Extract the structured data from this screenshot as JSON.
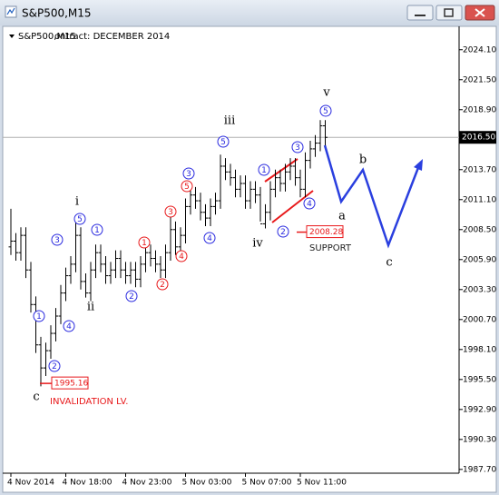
{
  "window": {
    "title": "S&P500,M15"
  },
  "chart_data": {
    "type": "ohlc",
    "title": "S&P500,M15",
    "subtitle": "ontract: DECEMBER 2014",
    "color": "#000000",
    "categories": [
      "4 Nov 2014",
      null,
      null,
      null,
      null,
      null,
      null,
      null,
      null,
      null,
      null,
      "4 Nov 18:00",
      null,
      null,
      null,
      null,
      null,
      null,
      null,
      null,
      null,
      null,
      null,
      "4 Nov 23:00",
      null,
      null,
      null,
      null,
      null,
      null,
      null,
      null,
      null,
      null,
      null,
      "5 Nov 03:00",
      null,
      null,
      null,
      null,
      null,
      null,
      null,
      null,
      null,
      null,
      null,
      "5 Nov 07:00",
      null,
      null,
      null,
      null,
      null,
      null,
      null,
      null,
      null,
      null,
      "5 Nov 11:00",
      null,
      null,
      null,
      null,
      null
    ],
    "open": [
      2007.0,
      2007.5,
      2006.5,
      2008.0,
      2005.0,
      2002.0,
      1998.5,
      1996.5,
      1998.0,
      1999.5,
      2001.0,
      2003.0,
      2004.5,
      2005.5,
      2008.0,
      2004.0,
      2003.0,
      2005.0,
      2006.5,
      2005.5,
      2004.5,
      2005.0,
      2006.0,
      2005.0,
      2004.5,
      2005.0,
      2004.2,
      2005.5,
      2006.5,
      2006.0,
      2005.5,
      2005.0,
      2006.5,
      2008.5,
      2007.0,
      2008.0,
      2010.5,
      2011.5,
      2011.0,
      2010.0,
      2009.5,
      2010.5,
      2011.0,
      2014.0,
      2013.5,
      2013.0,
      2012.0,
      2012.5,
      2011.0,
      2012.0,
      2011.5,
      2009.0,
      2010.0,
      2012.0,
      2013.0,
      2012.5,
      2013.5,
      2014.0,
      2013.0,
      2012.0,
      2014.5,
      2015.5,
      2016.0,
      2017.5
    ],
    "high": [
      2010.3,
      2008.2,
      2008.7,
      2008.7,
      2005.7,
      2002.7,
      1999.2,
      1998.7,
      2000.2,
      2001.7,
      2003.7,
      2005.2,
      2006.2,
      2009.6,
      2008.7,
      2004.7,
      2005.7,
      2007.2,
      2007.2,
      2006.2,
      2005.7,
      2006.7,
      2006.7,
      2005.7,
      2005.7,
      2005.7,
      2006.2,
      2007.2,
      2007.2,
      2006.7,
      2006.2,
      2007.2,
      2009.8,
      2009.2,
      2008.7,
      2011.2,
      2012.2,
      2012.2,
      2011.7,
      2010.7,
      2011.2,
      2011.7,
      2015.0,
      2014.7,
      2014.2,
      2013.7,
      2013.2,
      2013.2,
      2012.7,
      2012.7,
      2012.2,
      2010.7,
      2012.7,
      2013.7,
      2013.7,
      2014.2,
      2014.7,
      2014.7,
      2013.7,
      2015.2,
      2016.2,
      2016.7,
      2018.0,
      2018.0
    ],
    "low": [
      2006.3,
      2005.8,
      2005.8,
      2004.3,
      2001.3,
      1997.8,
      1994.9,
      1995.8,
      1997.3,
      1998.8,
      2000.3,
      2002.3,
      2003.8,
      2004.8,
      2003.3,
      2002.6,
      2002.3,
      2004.3,
      2004.8,
      2003.8,
      2003.8,
      2004.3,
      2004.3,
      2003.8,
      2003.8,
      2003.5,
      2003.5,
      2004.8,
      2005.3,
      2004.8,
      2004.3,
      2004.3,
      2005.8,
      2006.3,
      2006.3,
      2007.3,
      2009.8,
      2010.3,
      2009.3,
      2008.8,
      2008.8,
      2009.8,
      2010.3,
      2012.8,
      2012.3,
      2011.3,
      2011.3,
      2010.3,
      2010.3,
      2010.8,
      2009.2,
      2008.6,
      2009.3,
      2011.3,
      2011.8,
      2011.8,
      2012.8,
      2012.3,
      2011.3,
      2011.3,
      2013.8,
      2014.8,
      2015.3,
      2015.8
    ],
    "close": [
      2007.5,
      2006.5,
      2008.0,
      2005.0,
      2002.0,
      1998.5,
      1996.5,
      1998.0,
      1999.5,
      2001.0,
      2003.0,
      2004.5,
      2005.5,
      2008.0,
      2004.0,
      2003.0,
      2005.0,
      2006.5,
      2005.5,
      2004.5,
      2005.0,
      2006.0,
      2005.0,
      2004.5,
      2005.0,
      2004.2,
      2005.5,
      2006.5,
      2006.0,
      2005.5,
      2005.0,
      2006.5,
      2008.5,
      2007.0,
      2008.0,
      2010.5,
      2011.5,
      2011.0,
      2010.0,
      2009.5,
      2010.5,
      2011.0,
      2014.0,
      2013.5,
      2013.0,
      2012.0,
      2012.5,
      2011.0,
      2012.0,
      2011.5,
      2009.0,
      2010.0,
      2012.0,
      2013.0,
      2012.5,
      2013.5,
      2014.0,
      2013.0,
      2012.0,
      2014.5,
      2015.5,
      2016.0,
      2017.5,
      2016.5
    ],
    "ylim": [
      1987.45,
      2026.05
    ],
    "yticks": [
      {
        "value": 2024.1,
        "label": "2024.10"
      },
      {
        "value": 2021.5,
        "label": "2021.50"
      },
      {
        "value": 2018.9,
        "label": "2018.90"
      },
      {
        "value": 2016.3,
        "label": "2016.30"
      },
      {
        "value": 2013.7,
        "label": "2013.70"
      },
      {
        "value": 2011.1,
        "label": "2011.10"
      },
      {
        "value": 2008.5,
        "label": "2008.50"
      },
      {
        "value": 2005.9,
        "label": "2005.90"
      },
      {
        "value": 2003.3,
        "label": "2003.30"
      },
      {
        "value": 2000.7,
        "label": "2000.70"
      },
      {
        "value": 1998.1,
        "label": "1998.10"
      },
      {
        "value": 1995.5,
        "label": "1995.50"
      },
      {
        "value": 1992.9,
        "label": "1992.90"
      },
      {
        "value": 1990.3,
        "label": "1990.30"
      },
      {
        "value": 1987.7,
        "label": "1987.70"
      }
    ],
    "grid": false,
    "current_price": {
      "value": 2016.5,
      "label": "2016.50"
    },
    "invalidation": {
      "price": {
        "value": 1995.16,
        "label": "1995.16"
      },
      "label": "INVALIDATION LV.",
      "color": "#e8191b"
    },
    "support": {
      "price": {
        "value": 2008.28,
        "label": "2008.28"
      },
      "label": "SUPPORT",
      "color": "#e8191b"
    },
    "wave_labels": [
      {
        "text": "1",
        "color": "#2a2adf"
      },
      {
        "text": "2",
        "color": "#2a2adf"
      },
      {
        "text": "3",
        "color": "#2a2adf"
      },
      {
        "text": "4",
        "color": "#2a2adf"
      },
      {
        "text": "5",
        "color": "#2a2adf"
      },
      {
        "text": "1",
        "color": "#2a2adf"
      },
      {
        "text": "2",
        "color": "#2a2adf"
      },
      {
        "text": "3",
        "color": "#2a2adf"
      },
      {
        "text": "4",
        "color": "#2a2adf"
      },
      {
        "text": "5",
        "color": "#2a2adf"
      },
      {
        "text": "1",
        "color": "#2a2adf"
      },
      {
        "text": "2",
        "color": "#2a2adf"
      },
      {
        "text": "3",
        "color": "#2a2adf"
      },
      {
        "text": "4",
        "color": "#2a2adf"
      },
      {
        "text": "5",
        "color": "#2a2adf"
      },
      {
        "text": "1",
        "color": "#e8191b"
      },
      {
        "text": "2",
        "color": "#e8191b"
      },
      {
        "text": "3",
        "color": "#e8191b"
      },
      {
        "text": "4",
        "color": "#e8191b"
      },
      {
        "text": "5",
        "color": "#e8191b"
      },
      {
        "text": "i",
        "color": "#000000"
      },
      {
        "text": "ii",
        "color": "#000000"
      },
      {
        "text": "iii",
        "color": "#000000"
      },
      {
        "text": "iv",
        "color": "#000000"
      },
      {
        "text": "v",
        "color": "#000000"
      },
      {
        "text": "c",
        "color": "#000000"
      },
      {
        "text": "a",
        "color": "#000000"
      },
      {
        "text": "b",
        "color": "#000000"
      },
      {
        "text": "c",
        "color": "#000000"
      }
    ]
  }
}
